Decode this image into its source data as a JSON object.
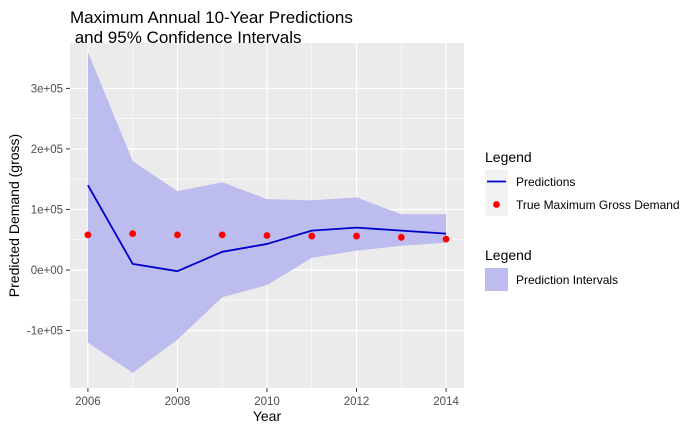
{
  "chart_data": {
    "type": "line",
    "title": "Maximum Annual 10-Year Predictions\n and 95% Confidence Intervals",
    "xlabel": "Year",
    "ylabel": "Predicted Demand (gross)",
    "x": [
      2006,
      2007,
      2008,
      2009,
      2010,
      2011,
      2012,
      2013,
      2014
    ],
    "xlim": [
      2005.6,
      2014.4
    ],
    "ylim": [
      -195000,
      375000
    ],
    "x_ticks": [
      2006,
      2008,
      2010,
      2012,
      2014
    ],
    "y_ticks": [
      -100000,
      0,
      100000,
      200000,
      300000
    ],
    "x_tick_labels": [
      "2006",
      "2008",
      "2010",
      "2012",
      "2014"
    ],
    "y_tick_labels": [
      "-1e+05",
      "0e+00",
      "1e+05",
      "2e+05",
      "3e+05"
    ],
    "grid": true,
    "legend_position": "right",
    "series": [
      {
        "name": "Predictions",
        "kind": "line",
        "color": "#0000cc",
        "values": [
          140000,
          10000,
          -2000,
          30000,
          43000,
          65000,
          70000,
          65000,
          60000
        ]
      },
      {
        "name": "True Maximum Gross Demand",
        "kind": "points",
        "color": "#ff0000",
        "values": [
          58000,
          60000,
          58000,
          58000,
          57000,
          56000,
          56000,
          54000,
          51000
        ]
      },
      {
        "name": "Prediction Intervals",
        "kind": "band",
        "color": "#bcbcef",
        "lower": [
          -120000,
          -170000,
          -115000,
          -45000,
          -25000,
          20000,
          32000,
          40000,
          45000
        ],
        "upper": [
          360000,
          180000,
          130000,
          145000,
          117000,
          115000,
          120000,
          92000,
          92000
        ]
      }
    ],
    "legends": [
      {
        "title": "Legend",
        "entries": [
          {
            "label": "Predictions",
            "kind": "line",
            "color": "#0000cc"
          },
          {
            "label": "True Maximum Gross Demand",
            "kind": "point",
            "color": "#ff0000"
          }
        ]
      },
      {
        "title": "Legend",
        "entries": [
          {
            "label": "Prediction Intervals",
            "kind": "band",
            "color": "#bcbcef"
          }
        ]
      }
    ]
  }
}
